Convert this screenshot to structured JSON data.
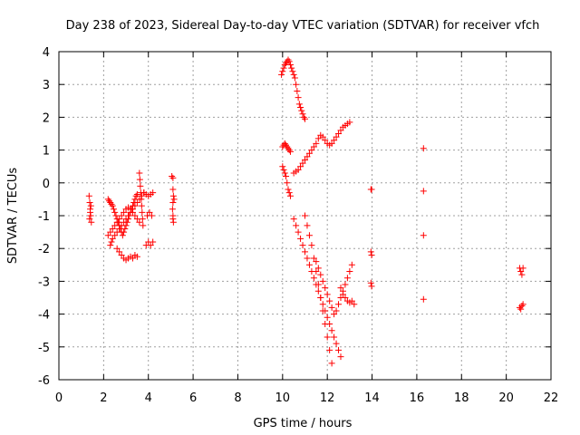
{
  "chart_data": {
    "type": "scatter",
    "title": "Day 238 of 2023, Sidereal Day-to-day VTEC variation (SDTVAR) for receiver vfch",
    "xlabel": "GPS time / hours",
    "ylabel": "SDTVAR / TECUs",
    "xlim": [
      0,
      22
    ],
    "ylim": [
      -6,
      4
    ],
    "xticks": [
      "0",
      "2",
      "4",
      "6",
      "8",
      "10",
      "12",
      "14",
      "16",
      "18",
      "20",
      "22"
    ],
    "yticks": [
      "-6",
      "-5",
      "-4",
      "-3",
      "-2",
      "-1",
      "0",
      "1",
      "2",
      "3",
      "4"
    ],
    "grid": true,
    "marker": "+",
    "color": "#ff0000",
    "series": [
      {
        "name": "SDTVAR",
        "x": [
          1.35,
          1.38,
          1.4,
          1.42,
          1.45,
          1.37,
          1.4,
          1.43,
          2.2,
          2.25,
          2.3,
          2.35,
          2.4,
          2.45,
          2.5,
          2.55,
          2.6,
          2.65,
          2.7,
          2.75,
          2.8,
          2.85,
          2.9,
          2.95,
          3.0,
          3.05,
          3.1,
          3.15,
          3.2,
          3.25,
          3.3,
          3.35,
          3.4,
          3.45,
          3.5,
          2.3,
          2.35,
          2.4,
          2.5,
          2.6,
          2.7,
          2.8,
          2.9,
          3.0,
          3.1,
          3.2,
          3.3,
          3.4,
          3.5,
          3.6,
          3.7,
          3.8,
          2.2,
          2.3,
          2.4,
          2.5,
          2.6,
          2.7,
          2.8,
          2.9,
          3.0,
          3.1,
          3.2,
          3.3,
          3.4,
          3.5,
          3.6,
          2.6,
          2.7,
          2.8,
          2.9,
          3.0,
          3.1,
          3.2,
          3.3,
          3.4,
          3.5,
          3.6,
          3.62,
          3.64,
          3.66,
          3.68,
          3.7,
          3.72,
          3.74,
          3.76,
          3.8,
          3.9,
          4.0,
          4.1,
          4.2,
          3.9,
          4.0,
          4.1,
          4.2,
          3.95,
          4.05,
          4.15,
          5.05,
          5.1,
          5.1,
          5.12,
          5.1,
          5.08,
          5.1,
          5.12,
          5.1,
          5.15,
          9.95,
          10.0,
          10.05,
          10.1,
          10.15,
          10.2,
          10.25,
          10.3,
          10.35,
          10.4,
          10.45,
          10.5,
          10.55,
          10.6,
          10.65,
          10.7,
          10.75,
          10.8,
          10.85,
          10.9,
          10.95,
          11.0,
          10.0,
          10.05,
          10.1,
          10.15,
          10.2,
          10.25,
          10.3,
          10.35,
          10.0,
          10.05,
          10.1,
          10.15,
          10.2,
          10.25,
          10.3,
          10.35,
          10.5,
          10.6,
          10.7,
          10.8,
          10.9,
          11.0,
          11.1,
          11.2,
          11.3,
          11.4,
          11.5,
          11.6,
          11.7,
          11.8,
          11.9,
          12.0,
          12.1,
          12.2,
          12.3,
          12.4,
          12.5,
          12.6,
          12.7,
          12.8,
          12.9,
          13.0,
          10.5,
          10.6,
          10.7,
          10.8,
          10.9,
          11.0,
          11.1,
          11.2,
          11.3,
          11.4,
          11.5,
          11.6,
          11.7,
          11.8,
          11.9,
          12.0,
          12.1,
          12.2,
          12.3,
          12.4,
          12.5,
          12.6,
          11.0,
          11.1,
          11.2,
          11.3,
          11.4,
          11.5,
          11.6,
          11.7,
          11.8,
          11.9,
          12.0,
          12.1,
          12.2,
          11.5,
          11.6,
          11.7,
          11.8,
          11.9,
          12.0,
          12.1,
          12.2,
          12.3,
          12.4,
          12.5,
          12.6,
          12.7,
          12.8,
          12.9,
          13.0,
          13.1,
          12.6,
          12.7,
          12.8,
          12.9,
          13.0,
          13.1,
          13.2,
          13.95,
          13.98,
          13.95,
          13.98,
          13.95,
          13.98,
          16.3,
          16.3,
          16.3,
          16.3,
          20.6,
          20.65,
          20.7,
          20.75,
          20.6,
          20.65,
          20.7,
          20.75
        ],
        "y": [
          -0.4,
          -0.6,
          -0.8,
          -1.0,
          -1.2,
          -1.1,
          -0.9,
          -0.7,
          -0.5,
          -0.55,
          -0.6,
          -0.65,
          -0.7,
          -0.8,
          -0.9,
          -1.0,
          -1.1,
          -1.2,
          -1.3,
          -1.4,
          -1.5,
          -1.6,
          -1.5,
          -1.4,
          -1.3,
          -1.2,
          -1.1,
          -1.0,
          -0.9,
          -0.8,
          -0.7,
          -0.6,
          -0.5,
          -0.4,
          -0.35,
          -1.9,
          -1.8,
          -1.7,
          -1.6,
          -1.5,
          -1.4,
          -1.3,
          -1.2,
          -1.1,
          -1.0,
          -0.9,
          -0.8,
          -0.7,
          -0.6,
          -0.5,
          -0.4,
          -0.3,
          -1.6,
          -1.5,
          -1.4,
          -1.3,
          -1.2,
          -1.1,
          -1.0,
          -0.9,
          -0.8,
          -0.75,
          -0.8,
          -0.9,
          -1.0,
          -1.1,
          -1.2,
          -2.0,
          -2.1,
          -2.2,
          -2.3,
          -2.35,
          -2.3,
          -2.25,
          -2.3,
          -2.2,
          -2.25,
          0.3,
          0.1,
          -0.1,
          -0.3,
          -0.5,
          -0.7,
          -0.9,
          -1.1,
          -1.3,
          -0.3,
          -0.35,
          -0.4,
          -0.35,
          -0.3,
          -1.9,
          -1.8,
          -1.9,
          -1.8,
          -1.0,
          -0.9,
          -1.0,
          0.2,
          0.15,
          -0.2,
          -0.4,
          -0.6,
          -0.8,
          -1.0,
          -1.2,
          -1.1,
          -0.5,
          3.3,
          3.4,
          3.5,
          3.6,
          3.65,
          3.7,
          3.75,
          3.7,
          3.6,
          3.5,
          3.4,
          3.3,
          3.2,
          3.0,
          2.8,
          2.6,
          2.4,
          2.3,
          2.2,
          2.1,
          2.0,
          1.95,
          1.1,
          1.15,
          1.2,
          1.15,
          1.1,
          1.05,
          1.0,
          0.95,
          0.5,
          0.4,
          0.3,
          0.2,
          0.0,
          -0.2,
          -0.3,
          -0.4,
          0.3,
          0.35,
          0.4,
          0.5,
          0.6,
          0.7,
          0.8,
          0.9,
          1.0,
          1.1,
          1.2,
          1.35,
          1.45,
          1.4,
          1.3,
          1.2,
          1.15,
          1.2,
          1.3,
          1.4,
          1.5,
          1.6,
          1.7,
          1.75,
          1.8,
          1.85,
          -1.1,
          -1.3,
          -1.5,
          -1.7,
          -1.9,
          -2.1,
          -2.3,
          -2.5,
          -2.7,
          -2.9,
          -3.1,
          -3.3,
          -3.5,
          -3.7,
          -3.9,
          -4.1,
          -4.3,
          -4.5,
          -4.7,
          -4.9,
          -5.1,
          -5.3,
          -1.0,
          -1.3,
          -1.6,
          -1.9,
          -2.3,
          -2.7,
          -3.1,
          -3.5,
          -3.9,
          -4.3,
          -4.7,
          -5.1,
          -5.5,
          -2.4,
          -2.6,
          -2.8,
          -3.0,
          -3.2,
          -3.4,
          -3.6,
          -3.8,
          -4.0,
          -3.9,
          -3.7,
          -3.5,
          -3.3,
          -3.1,
          -2.9,
          -2.7,
          -2.5,
          -3.2,
          -3.4,
          -3.5,
          -3.6,
          -3.65,
          -3.6,
          -3.7,
          -0.2,
          -0.2,
          -2.1,
          -2.2,
          -3.05,
          -3.15,
          1.05,
          -0.25,
          -1.6,
          -3.55,
          -2.6,
          -2.7,
          -2.8,
          -2.6,
          -3.8,
          -3.85,
          -3.75,
          -3.7
        ]
      }
    ]
  }
}
